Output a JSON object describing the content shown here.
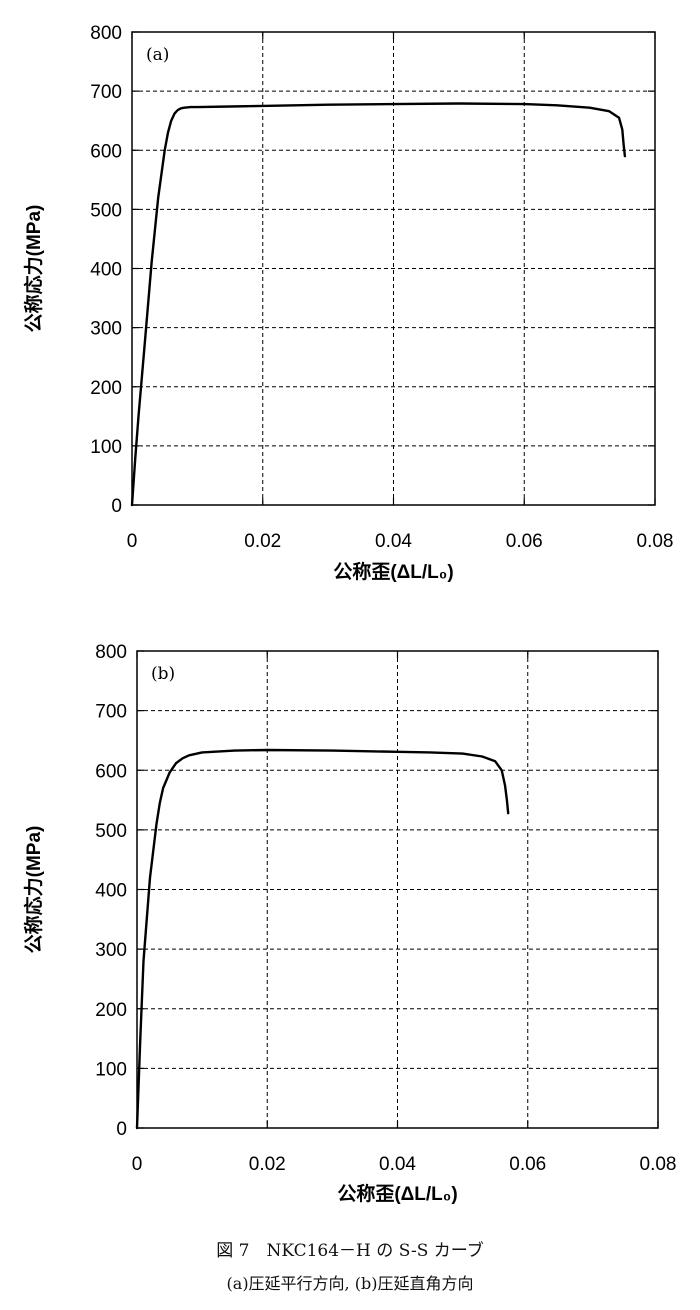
{
  "figure": {
    "caption_line1": "図 7　NKC164－H の S-S カーブ",
    "caption_line2": "(a)圧延平行方向, (b)圧延直角方向"
  },
  "chart_data": [
    {
      "type": "line",
      "panel_label": "(a)",
      "xlabel": "公称歪(ΔL/L₀)",
      "ylabel": "公称応力(MPa)",
      "xlim": [
        0,
        0.08
      ],
      "ylim": [
        0,
        800
      ],
      "xticks": [
        "0",
        "0.02",
        "0.04",
        "0.06",
        "0.08"
      ],
      "yticks": [
        "0",
        "100",
        "200",
        "300",
        "400",
        "500",
        "600",
        "700",
        "800"
      ],
      "grid": true,
      "line_color": "#000000",
      "series": [
        {
          "x": [
            0,
            0.0005,
            0.001,
            0.002,
            0.003,
            0.004,
            0.005,
            0.0055,
            0.006,
            0.0065,
            0.007,
            0.0075,
            0.008,
            0.009,
            0.01,
            0.015,
            0.02,
            0.03,
            0.04,
            0.05,
            0.06,
            0.065,
            0.07,
            0.073,
            0.0745,
            0.075,
            0.0752,
            0.0754
          ],
          "y": [
            0,
            80,
            150,
            280,
            410,
            520,
            600,
            630,
            650,
            662,
            668,
            671,
            672,
            673,
            673,
            674,
            675,
            677,
            678,
            679,
            678,
            676,
            672,
            666,
            655,
            635,
            610,
            590
          ]
        }
      ]
    },
    {
      "type": "line",
      "panel_label": "(b)",
      "xlabel": "公称歪(ΔL/L₀)",
      "ylabel": "公称応力(MPa)",
      "xlim": [
        0,
        0.08
      ],
      "ylim": [
        0,
        800
      ],
      "xticks": [
        "0",
        "0.02",
        "0.04",
        "0.06",
        "0.08"
      ],
      "yticks": [
        "0",
        "100",
        "200",
        "300",
        "400",
        "500",
        "600",
        "700",
        "800"
      ],
      "grid": true,
      "line_color": "#000000",
      "series": [
        {
          "x": [
            0,
            0.0005,
            0.001,
            0.002,
            0.003,
            0.0035,
            0.004,
            0.005,
            0.006,
            0.007,
            0.008,
            0.01,
            0.015,
            0.02,
            0.03,
            0.04,
            0.045,
            0.05,
            0.053,
            0.055,
            0.056,
            0.0565,
            0.0568,
            0.057
          ],
          "y": [
            0,
            150,
            280,
            420,
            510,
            545,
            570,
            596,
            612,
            620,
            625,
            630,
            633,
            634,
            633,
            631,
            630,
            628,
            623,
            615,
            600,
            575,
            550,
            528
          ]
        }
      ]
    }
  ]
}
